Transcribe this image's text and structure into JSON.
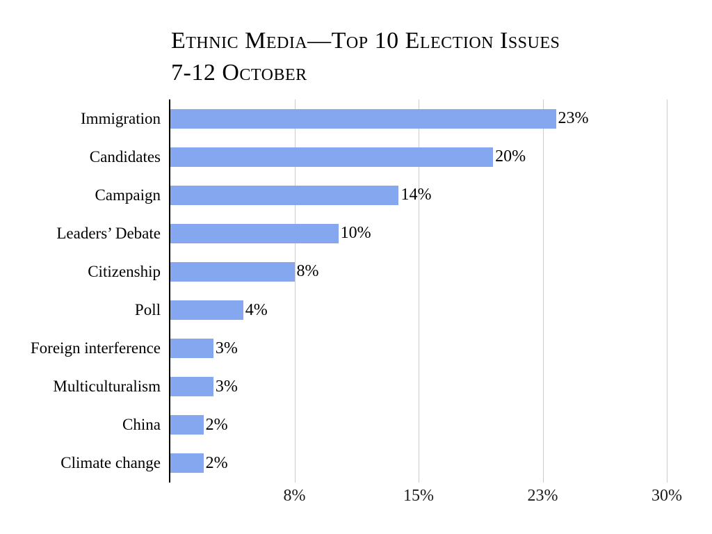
{
  "title": {
    "line1": "Ethnic Media—Top 10 Election Issues",
    "line2": "7-12 October"
  },
  "colors": {
    "bar": "#84a7f0",
    "gridline": "#cccccc",
    "axis": "#000000",
    "text": "#000000",
    "background": "#ffffff"
  },
  "chart_data": {
    "type": "bar",
    "orientation": "horizontal",
    "title": "Ethnic Media—Top 10 Election Issues 7-12 October",
    "categories": [
      "Immigration",
      "Candidates",
      "Campaign",
      "Leaders’ Debate",
      "Citizenship",
      "Poll",
      "Foreign interference",
      "Multiculturalism",
      "China",
      "Climate change"
    ],
    "values": [
      23,
      20,
      14,
      10,
      8,
      4,
      3,
      3,
      2,
      2
    ],
    "value_labels": [
      "23%",
      "20%",
      "14%",
      "10%",
      "8%",
      "4%",
      "3%",
      "3%",
      "2%",
      "2%"
    ],
    "bar_percent_estimate": [
      23.3,
      19.5,
      13.8,
      10.15,
      7.5,
      4.4,
      2.6,
      2.6,
      2.0,
      2.0
    ],
    "xlim": [
      0,
      30
    ],
    "x_ticks": [
      {
        "label": "8%",
        "value": 7.5
      },
      {
        "label": "15%",
        "value": 15
      },
      {
        "label": "23%",
        "value": 22.5
      },
      {
        "label": "30%",
        "value": 30
      }
    ],
    "grid": "vertical-gridlines-only",
    "legend": "none",
    "xlabel": "",
    "ylabel": ""
  }
}
